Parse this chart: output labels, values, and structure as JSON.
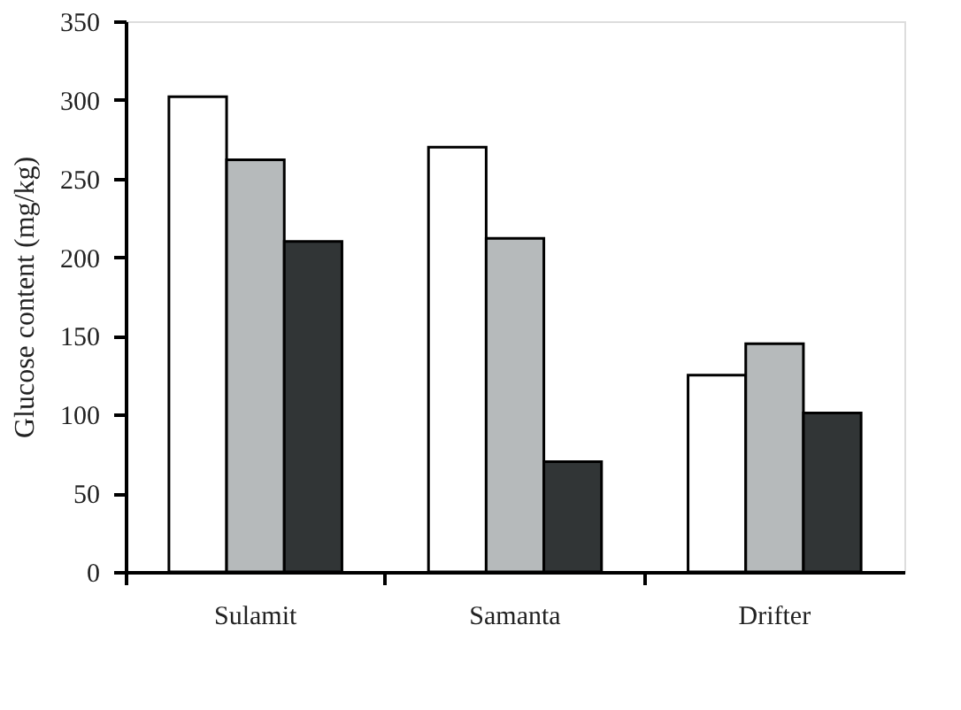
{
  "chart_data": {
    "type": "bar",
    "ylabel": "Glucose content (mg/kg)",
    "categories": [
      "Sulamit",
      "Samanta",
      "Drifter"
    ],
    "series": [
      {
        "color": "#ffffff",
        "values": [
          302,
          270,
          125
        ]
      },
      {
        "color": "#b6babb",
        "values": [
          262,
          212,
          145
        ]
      },
      {
        "color": "#313536",
        "values": [
          210,
          70,
          101
        ]
      }
    ],
    "ylim": [
      0,
      350
    ],
    "yticks": [
      0,
      50,
      100,
      150,
      200,
      250,
      300,
      350
    ],
    "grid": false,
    "legend": false
  }
}
